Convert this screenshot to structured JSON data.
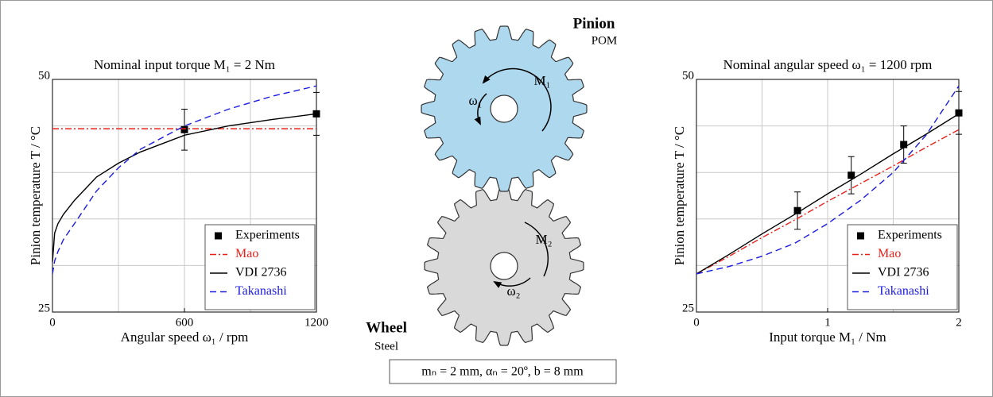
{
  "chart_data": [
    {
      "type": "line",
      "title": "Nominal input torque M₁ = 2 Nm",
      "xlabel": "Angular speed ω₁ / rpm",
      "ylabel": "Pinion temperature T / °C",
      "xlim": [
        0,
        1200
      ],
      "ylim": [
        25,
        50
      ],
      "xticks": [
        0,
        600,
        1200
      ],
      "yticks": [
        25,
        50
      ],
      "xgrid": [
        300,
        600,
        900
      ],
      "ygrid": [
        30,
        35,
        40,
        45
      ],
      "legend": "lower right",
      "series": [
        {
          "name": "Experiments",
          "color": "#000000",
          "marker": "square",
          "x": [
            600,
            1200
          ],
          "values": [
            44.6,
            46.3
          ],
          "errors": [
            2.2,
            2.3
          ]
        },
        {
          "name": "Mao",
          "color": "#e8201a",
          "style": "dashdot",
          "x": [
            0,
            1200
          ],
          "values": [
            44.7,
            44.7
          ]
        },
        {
          "name": "VDI 2736",
          "color": "#000000",
          "style": "solid",
          "x": [
            0,
            10,
            25,
            50,
            100,
            200,
            300,
            400,
            600,
            800,
            1000,
            1200
          ],
          "values": [
            30.4,
            33.5,
            34.5,
            35.5,
            37,
            39.5,
            41,
            42.2,
            44,
            45,
            45.7,
            46.3
          ]
        },
        {
          "name": "Takanashi",
          "color": "#1a1ae0",
          "style": "dashed",
          "x": [
            0,
            10,
            25,
            50,
            100,
            200,
            300,
            400,
            600,
            800,
            1000,
            1200
          ],
          "values": [
            29.1,
            30.5,
            31.5,
            32.8,
            34.5,
            38,
            40.5,
            42.5,
            45,
            46.8,
            48.2,
            49.3
          ]
        }
      ]
    },
    {
      "type": "line",
      "title": "Nominal angular speed ω₁ = 1200 rpm",
      "xlabel": "Input torque M₁ / Nm",
      "ylabel": "Pinion temperature T / °C",
      "xlim": [
        0,
        2
      ],
      "ylim": [
        25,
        50
      ],
      "xticks": [
        0,
        1,
        2
      ],
      "yticks": [
        25,
        50
      ],
      "xgrid": [
        0.5,
        1,
        1.5
      ],
      "ygrid": [
        30,
        35,
        40,
        45
      ],
      "legend": "lower right",
      "series": [
        {
          "name": "Experiments",
          "color": "#000000",
          "marker": "square",
          "x": [
            0.77,
            1.18,
            1.58,
            2
          ],
          "values": [
            35.9,
            39.7,
            43,
            46.4
          ],
          "errors": [
            2,
            2,
            2,
            2.3
          ]
        },
        {
          "name": "Mao",
          "color": "#e8201a",
          "style": "dashdot",
          "x": [
            0,
            0.25,
            0.5,
            0.75,
            1,
            1.25,
            1.5,
            1.75,
            2
          ],
          "values": [
            29.1,
            31,
            33,
            34.9,
            36.9,
            38.8,
            40.7,
            42.7,
            44.6
          ]
        },
        {
          "name": "VDI 2736",
          "color": "#000000",
          "style": "solid",
          "x": [
            0,
            0.25,
            0.5,
            0.75,
            1,
            1.25,
            1.5,
            1.75,
            2
          ],
          "values": [
            29.1,
            31.2,
            33.4,
            35.5,
            37.7,
            39.8,
            42,
            44.1,
            46.3
          ]
        },
        {
          "name": "Takanashi",
          "color": "#1a1ae0",
          "style": "dashed",
          "x": [
            0,
            0.25,
            0.5,
            0.75,
            1,
            1.25,
            1.5,
            1.75,
            2
          ],
          "values": [
            29.1,
            29.9,
            31,
            32.4,
            34.5,
            37,
            40,
            44,
            49.3
          ]
        }
      ]
    }
  ],
  "diagram": {
    "pinion": {
      "name": "Pinion",
      "material": "POM",
      "torque": "M₁",
      "speed": "ω₁"
    },
    "wheel": {
      "name": "Wheel",
      "material": "Steel",
      "torque": "M₂",
      "speed": "ω₂"
    },
    "caption": "mₙ = 2 mm, αₙ = 20º, b = 8 mm"
  }
}
